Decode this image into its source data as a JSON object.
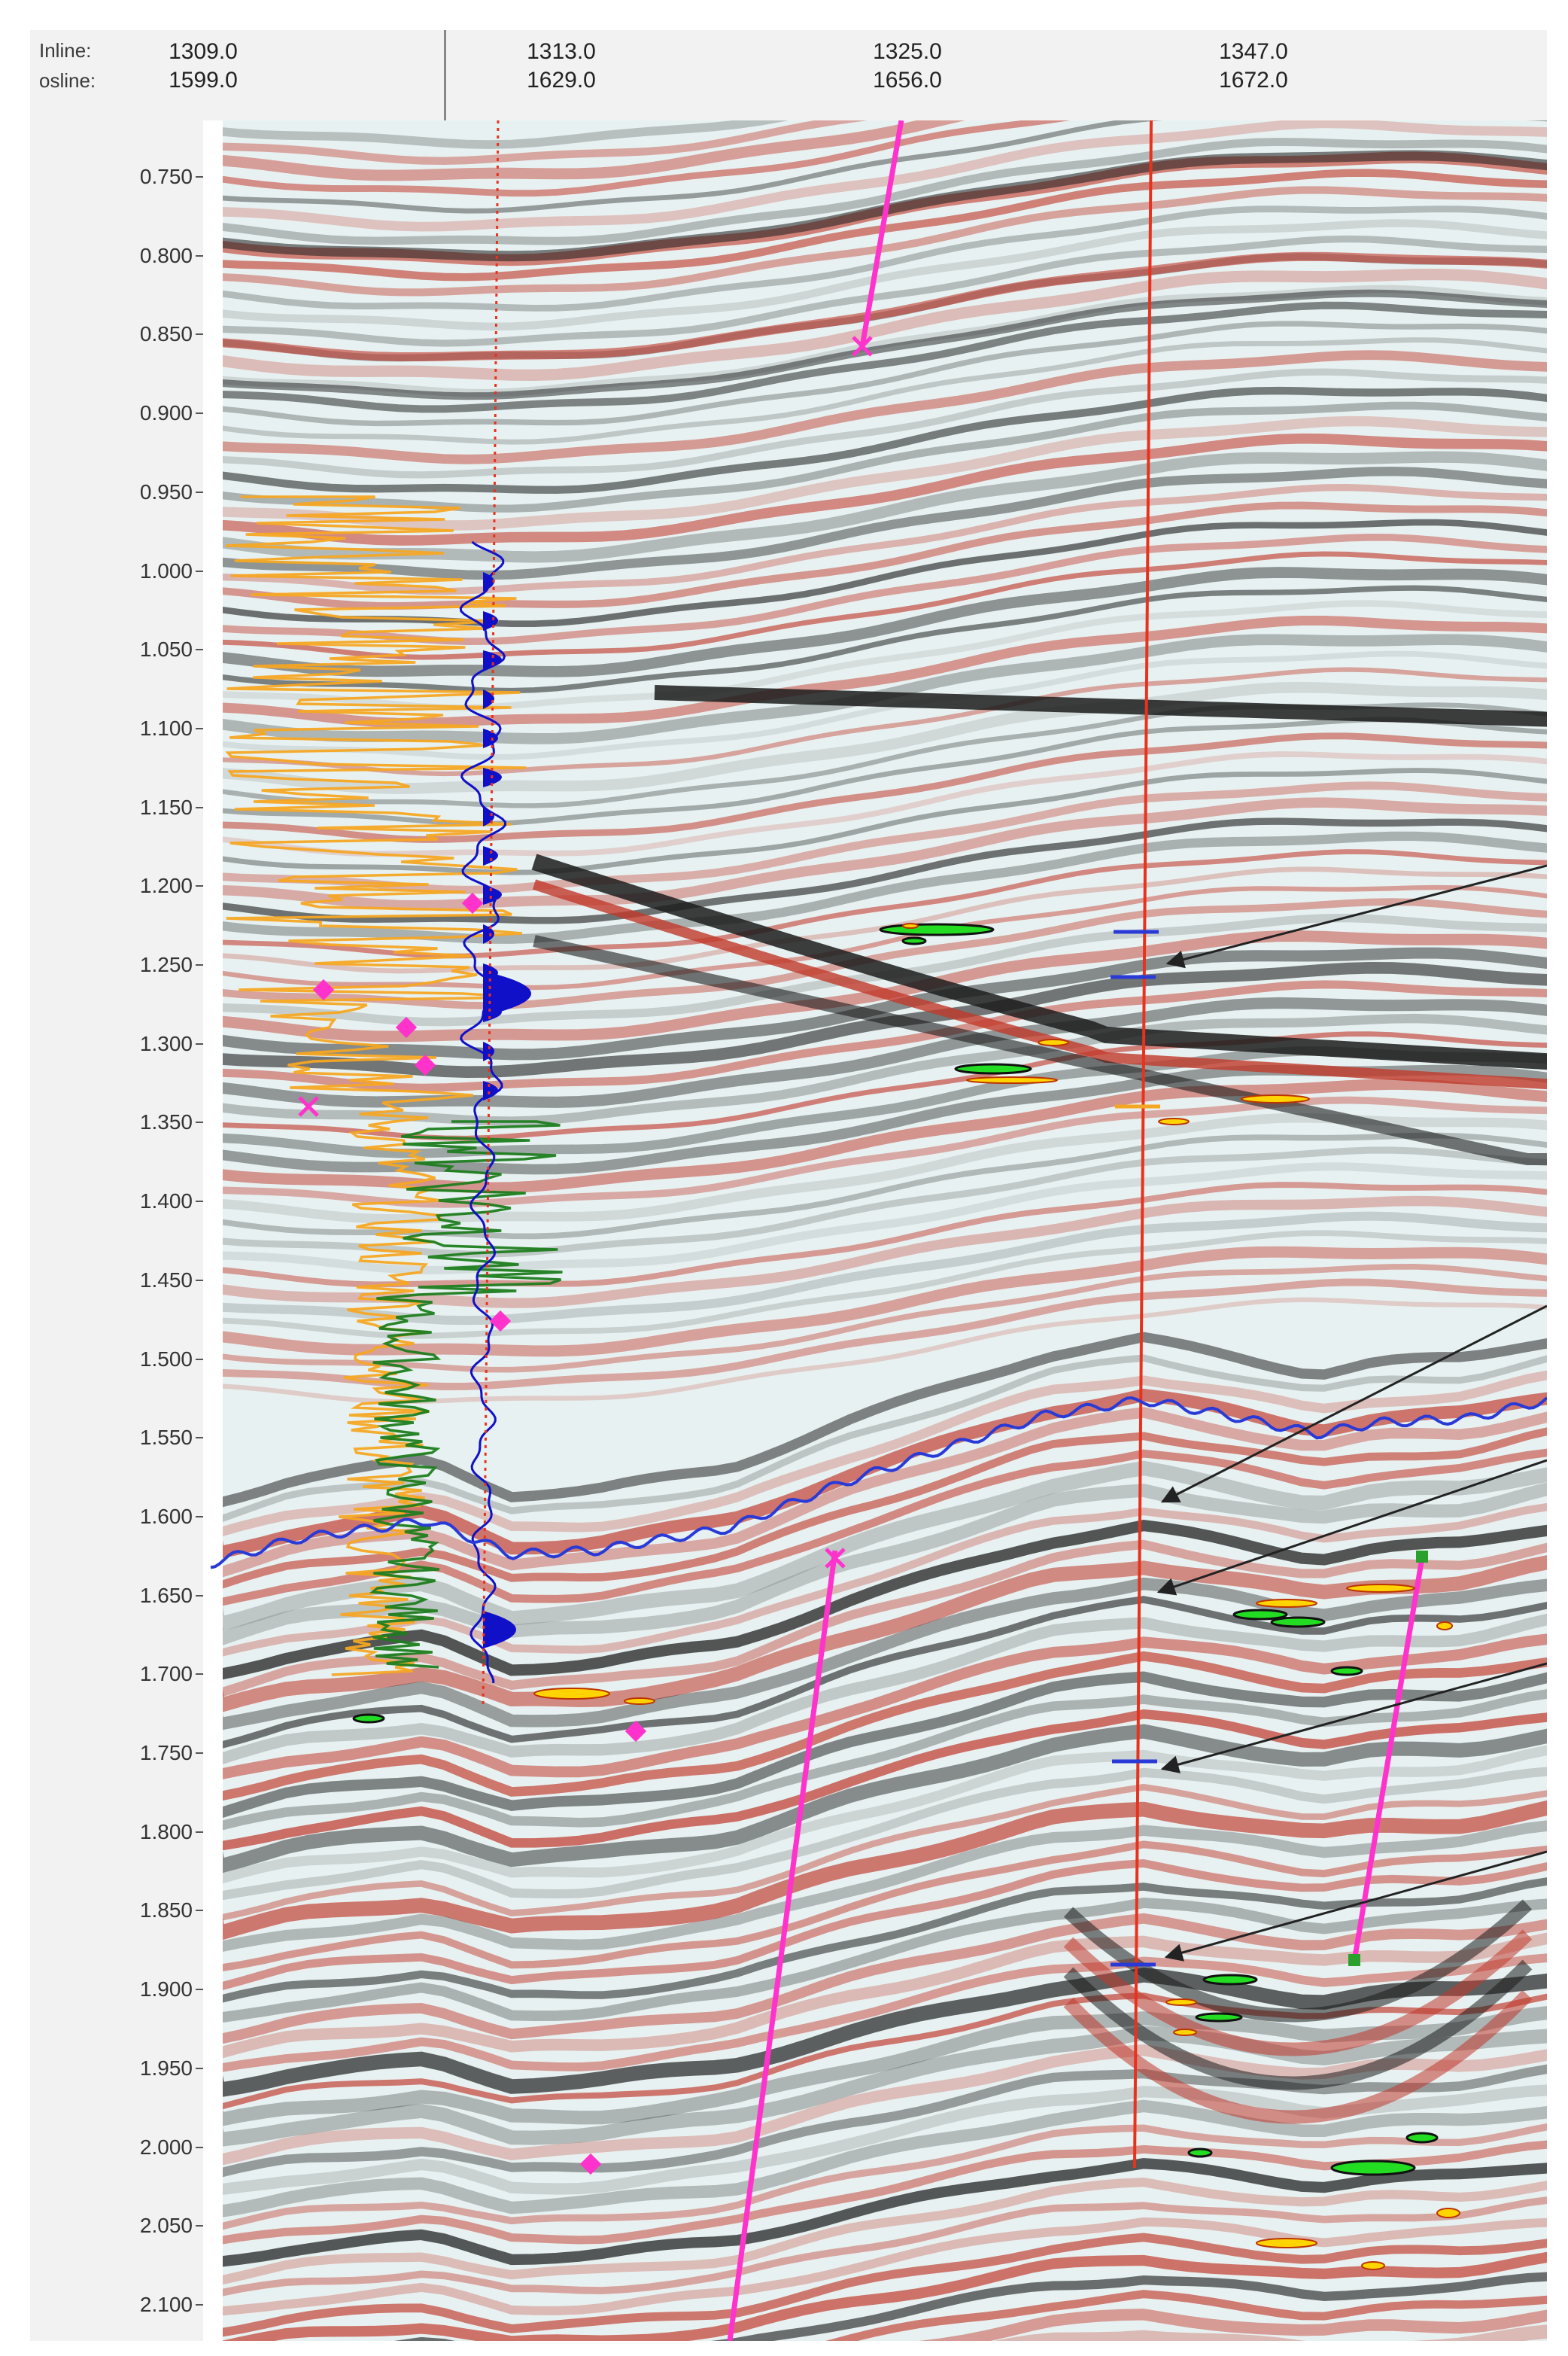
{
  "header": {
    "inline_label": "Inline:",
    "crossline_label": "osline:",
    "columns": [
      {
        "inline": "1309.0",
        "crossline": "1599.0"
      },
      {
        "inline": "1313.0",
        "crossline": "1629.0"
      },
      {
        "inline": "1325.0",
        "crossline": "1656.0"
      },
      {
        "inline": "1347.0",
        "crossline": "1672.0"
      }
    ]
  },
  "time_axis": {
    "ticks": [
      "0.750",
      "0.800",
      "0.850",
      "0.900",
      "0.950",
      "1.000",
      "1.050",
      "1.100",
      "1.150",
      "1.200",
      "1.250",
      "1.300",
      "1.350",
      "1.400",
      "1.450",
      "1.500",
      "1.550",
      "1.600",
      "1.650",
      "1.700",
      "1.750",
      "1.800",
      "1.850",
      "1.900",
      "1.950",
      "2.000",
      "2.050",
      "2.100"
    ]
  },
  "colors": {
    "seismic_positive": "#c0392b",
    "seismic_negative": "#1c1c1c",
    "background": "#e7f1f1",
    "log_orange": "#f5a623",
    "log_green": "#1e7d1e",
    "synthetic_blue": "#1010c8",
    "horizon_blue": "#2a3ad6",
    "well_red": "#e8321e",
    "fault_magenta": "#ff33cc",
    "anomaly_green": "#22dd22",
    "anomaly_yellow": "#ffd400",
    "arrow": "#222222"
  },
  "icons": {
    "well_marker": "magenta-x-icon",
    "arrow_pointer": "arrow-icon"
  }
}
